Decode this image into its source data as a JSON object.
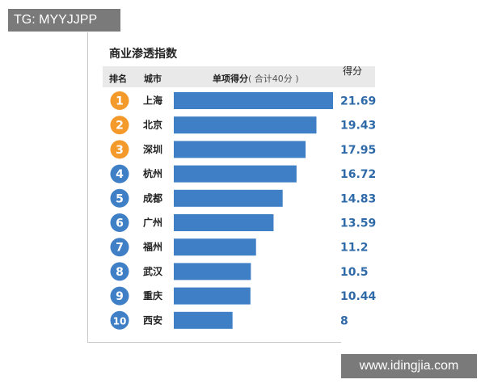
{
  "watermarks": {
    "top": "TG: MYYJJPP",
    "bottom": "www.idingjia.com"
  },
  "header": {
    "rank": "排名",
    "city": "城市",
    "score": "单项得分",
    "score_note": "( 合计40分 )",
    "value": "得分"
  },
  "colors": {
    "bar": "#3f7fc6",
    "top_rank_circle": "#f39a2b",
    "rank_circle": "#3f7fc6",
    "value_text": "#2f6aa8"
  },
  "chart_data": {
    "type": "bar",
    "orientation": "horizontal",
    "title": "商业渗透指数",
    "xlim": [
      0,
      21.69
    ],
    "grid": false,
    "categories": [
      "上海",
      "北京",
      "深圳",
      "杭州",
      "成都",
      "广州",
      "福州",
      "武汉",
      "重庆",
      "西安"
    ],
    "ranks": [
      "1",
      "2",
      "3",
      "4",
      "5",
      "6",
      "7",
      "8",
      "9",
      "10"
    ],
    "values": [
      21.69,
      19.43,
      17.95,
      16.72,
      14.83,
      13.59,
      11.2,
      10.5,
      10.44,
      8
    ],
    "value_labels": [
      "21.69",
      "19.43",
      "17.95",
      "16.72",
      "14.83",
      "13.59",
      "11.2",
      "10.5",
      "10.44",
      "8"
    ]
  }
}
